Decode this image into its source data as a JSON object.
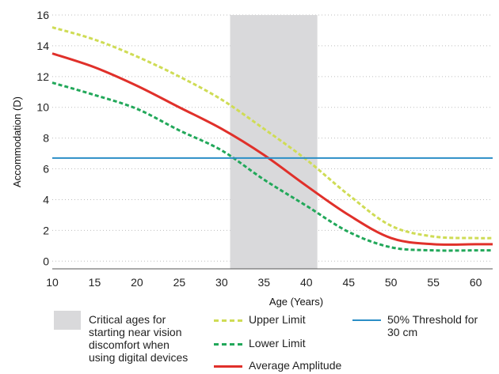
{
  "chart_data": {
    "type": "line",
    "xlabel": "Age (Years)",
    "ylabel": "Accommodation (D)",
    "xlim": [
      10,
      62
    ],
    "ylim": [
      -0.5,
      16
    ],
    "xticks": [
      10,
      15,
      20,
      25,
      30,
      35,
      40,
      45,
      50,
      55,
      60
    ],
    "yticks": [
      0,
      2,
      4,
      6,
      8,
      10,
      12,
      14,
      16
    ],
    "grid": "horizontal-dotted",
    "shaded_region": {
      "x": [
        31,
        41.3
      ],
      "color": "#d9d9db",
      "label": "Critical ages for\nstarting near vision\ndiscomfort when\nusing digital devices"
    },
    "threshold": {
      "y": 6.7,
      "label": "50% Threshold for\n30 cm",
      "color": "#2b8ec6"
    },
    "series": [
      {
        "name": "Upper Limit",
        "style": "dashed",
        "color": "#cfdc55",
        "x": [
          10,
          15,
          20,
          25,
          30,
          35,
          40,
          45,
          50,
          55,
          60,
          62
        ],
        "y": [
          15.2,
          14.4,
          13.3,
          12.0,
          10.5,
          8.6,
          6.6,
          4.3,
          2.3,
          1.6,
          1.5,
          1.5
        ]
      },
      {
        "name": "Lower Limit",
        "style": "dashed",
        "color": "#22a85a",
        "x": [
          10,
          15,
          20,
          25,
          30,
          35,
          40,
          45,
          50,
          55,
          60,
          62
        ],
        "y": [
          11.6,
          10.8,
          9.9,
          8.5,
          7.2,
          5.3,
          3.6,
          1.9,
          0.9,
          0.7,
          0.7,
          0.7
        ]
      },
      {
        "name": "Average Amplitude",
        "style": "solid",
        "color": "#e0302a",
        "x": [
          10,
          15,
          20,
          25,
          30,
          35,
          40,
          45,
          50,
          55,
          60,
          62
        ],
        "y": [
          13.5,
          12.6,
          11.4,
          10.0,
          8.6,
          6.9,
          4.9,
          3.0,
          1.5,
          1.1,
          1.1,
          1.1
        ]
      }
    ]
  }
}
